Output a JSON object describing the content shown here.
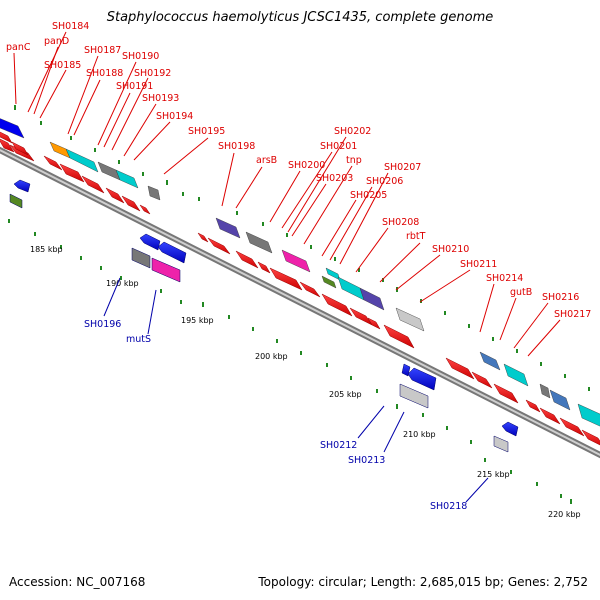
{
  "title": "Staphylococcus haemolyticus JCSC1435, complete genome",
  "footer": {
    "accession": "Accession: NC_007168",
    "summary": "Topology: circular; Length: 2,685,015 bp; Genes: 2,752"
  },
  "colors": {
    "forward_label": "#dd0000",
    "reverse_label": "#0000aa",
    "cds": "#ff0000",
    "cds_reverse": "#0000ff",
    "cog_cyan": "#00cccc",
    "cog_gray": "#888888",
    "cog_purple": "#5544aa",
    "cog_magenta": "#ee22aa",
    "cog_orange": "#ff9900",
    "cog_green": "#558822",
    "cog_steel": "#4477bb",
    "cog_silver": "#c8c8c8",
    "tick_green": "#228822",
    "backbone": "#888888"
  },
  "scale_ticks": [
    "185 kbp",
    "190 kbp",
    "195 kbp",
    "200 kbp",
    "205 kbp",
    "210 kbp",
    "215 kbp",
    "220 kbp"
  ],
  "forward_gene_labels": [
    "panC",
    "SH0184",
    "panD",
    "SH0185",
    "SH0187",
    "SH0188",
    "SH0190",
    "SH0191",
    "SH0192",
    "SH0193",
    "SH0194",
    "SH0195",
    "SH0198",
    "arsB",
    "SH0200",
    "SH0201",
    "SH0202",
    "SH0203",
    "tnp",
    "SH0205",
    "SH0206",
    "SH0207",
    "SH0208",
    "rbtT",
    "SH0210",
    "SH0211",
    "SH0214",
    "gutB",
    "SH0216",
    "SH0217"
  ],
  "reverse_gene_labels": [
    "SH0196",
    "mutS",
    "SH0212",
    "SH0213",
    "SH0218"
  ]
}
